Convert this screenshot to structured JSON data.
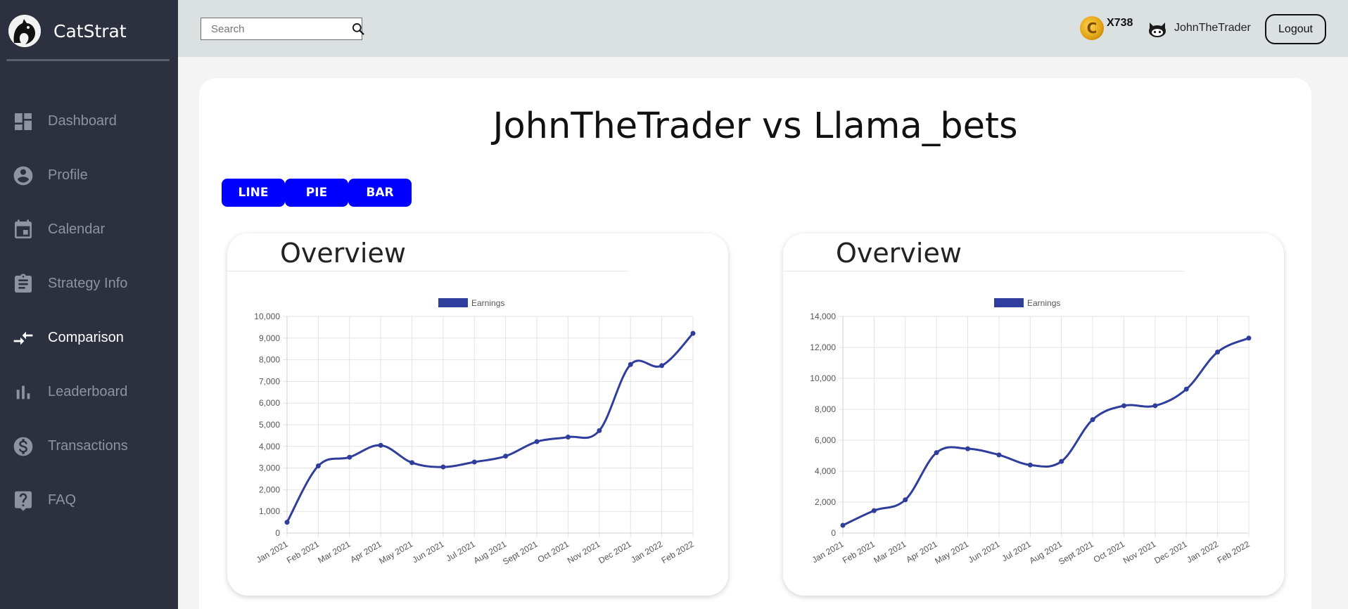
{
  "sidebar": {
    "brand": "CatStrat",
    "items": [
      {
        "label": "Dashboard",
        "icon": "dashboard-icon",
        "active": false
      },
      {
        "label": "Profile",
        "icon": "profile-icon",
        "active": false
      },
      {
        "label": "Calendar",
        "icon": "calendar-icon",
        "active": false
      },
      {
        "label": "Strategy Info",
        "icon": "clipboard-icon",
        "active": false
      },
      {
        "label": "Comparison",
        "icon": "compare-arrows-icon",
        "active": true
      },
      {
        "label": "Leaderboard",
        "icon": "bar-chart-icon",
        "active": false
      },
      {
        "label": "Transactions",
        "icon": "dollar-icon",
        "active": false
      },
      {
        "label": "FAQ",
        "icon": "help-icon",
        "active": false
      }
    ]
  },
  "header": {
    "search_placeholder": "Search",
    "search_value": "",
    "coin_count": "X738",
    "username": "JohnTheTrader",
    "logout_label": "Logout"
  },
  "main": {
    "title": "JohnTheTrader vs Llama_bets",
    "toggles": [
      "LINE",
      "PIE",
      "BAR"
    ]
  },
  "colors": {
    "sidebar_bg": "#2c303f",
    "header_bg": "#dbe0e0",
    "toggle_bg": "#0000ff",
    "series_line": "#2f3d9c"
  },
  "chart_data": [
    {
      "type": "line",
      "title": "Overview",
      "x": [
        "Jan 2021",
        "Feb 2021",
        "Mar 2021",
        "Apr 2021",
        "May 2021",
        "Jun 2021",
        "Jul 2021",
        "Aug 2021",
        "Sept 2021",
        "Oct 2021",
        "Nov 2021",
        "Dec 2021",
        "Jan 2022",
        "Feb 2022"
      ],
      "series": [
        {
          "name": "Earnings",
          "values": [
            500,
            3100,
            3500,
            4050,
            3250,
            3050,
            3280,
            3550,
            4220,
            4430,
            4730,
            7780,
            7730,
            9220
          ]
        }
      ],
      "ylim": [
        0,
        10000
      ],
      "yticks": [
        0,
        1000,
        2000,
        3000,
        4000,
        5000,
        6000,
        7000,
        8000,
        9000,
        10000
      ],
      "ytick_labels": [
        "0",
        "1,000",
        "2,000",
        "3,000",
        "4,000",
        "5,000",
        "6,000",
        "7,000",
        "8,000",
        "9,000",
        "10,000"
      ],
      "legend": "top-center",
      "grid": true
    },
    {
      "type": "line",
      "title": "Overview",
      "x": [
        "Jan 2021",
        "Feb 2021",
        "Mar 2021",
        "Apr 2021",
        "May 2021",
        "Jun 2021",
        "Jul 2021",
        "Aug 2021",
        "Sept 2021",
        "Oct 2021",
        "Nov 2021",
        "Dec 2021",
        "Jan 2022",
        "Feb 2022"
      ],
      "series": [
        {
          "name": "Earnings",
          "values": [
            500,
            1450,
            2150,
            5200,
            5450,
            5050,
            4400,
            4630,
            7330,
            8230,
            8230,
            9300,
            11700,
            12600
          ]
        }
      ],
      "ylim": [
        0,
        14000
      ],
      "yticks": [
        0,
        2000,
        4000,
        6000,
        8000,
        10000,
        12000,
        14000
      ],
      "ytick_labels": [
        "0",
        "2,000",
        "4,000",
        "6,000",
        "8,000",
        "10,000",
        "12,000",
        "14,000"
      ],
      "legend": "top-center",
      "grid": true
    }
  ]
}
